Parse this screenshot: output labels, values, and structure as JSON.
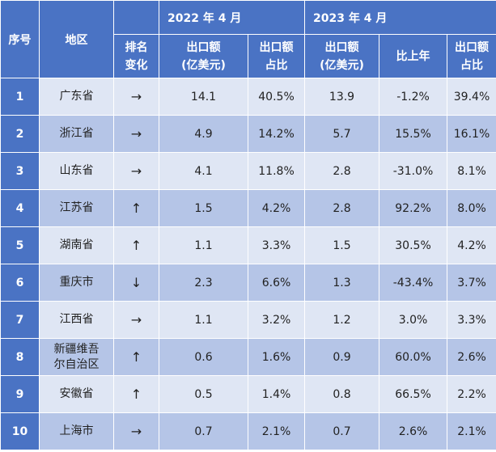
{
  "header": {
    "index": "序号",
    "region": "地区",
    "year_2022": "2022 年 4 月",
    "year_2023": "2023 年 4 月",
    "rank_change": [
      "排名",
      "变化"
    ],
    "export_value": [
      "出口额",
      "(亿美元)"
    ],
    "share": [
      "出口额",
      "占比"
    ],
    "export_value_2023": [
      "出口额",
      "(亿美元)"
    ],
    "yoy": "比上年",
    "share_2023": [
      "出口额",
      "占比"
    ]
  },
  "rows": [
    {
      "idx": "1",
      "region": "广东省",
      "rank": "→",
      "v2022": "14.1",
      "s2022": "40.5%",
      "v2023": "13.9",
      "yoy": "-1.2%",
      "s2023": "39.4%"
    },
    {
      "idx": "2",
      "region": "浙江省",
      "rank": "→",
      "v2022": "4.9",
      "s2022": "14.2%",
      "v2023": "5.7",
      "yoy": "15.5%",
      "s2023": "16.1%"
    },
    {
      "idx": "3",
      "region": "山东省",
      "rank": "→",
      "v2022": "4.1",
      "s2022": "11.8%",
      "v2023": "2.8",
      "yoy": "-31.0%",
      "s2023": "8.1%"
    },
    {
      "idx": "4",
      "region": "江苏省",
      "rank": "↑",
      "v2022": "1.5",
      "s2022": "4.2%",
      "v2023": "2.8",
      "yoy": "92.2%",
      "s2023": "8.0%"
    },
    {
      "idx": "5",
      "region": "湖南省",
      "rank": "↑",
      "v2022": "1.1",
      "s2022": "3.3%",
      "v2023": "1.5",
      "yoy": "30.5%",
      "s2023": "4.2%"
    },
    {
      "idx": "6",
      "region": "重庆市",
      "rank": "↓",
      "v2022": "2.3",
      "s2022": "6.6%",
      "v2023": "1.3",
      "yoy": "-43.4%",
      "s2023": "3.7%"
    },
    {
      "idx": "7",
      "region": "江西省",
      "rank": "→",
      "v2022": "1.1",
      "s2022": "3.2%",
      "v2023": "1.2",
      "yoy": "3.0%",
      "s2023": "3.3%"
    },
    {
      "idx": "8",
      "region": "新疆维吾尔自治区",
      "rank": "↑",
      "v2022": "0.6",
      "s2022": "1.6%",
      "v2023": "0.9",
      "yoy": "60.0%",
      "s2023": "2.6%"
    },
    {
      "idx": "9",
      "region": "安徽省",
      "rank": "↑",
      "v2022": "0.5",
      "s2022": "1.4%",
      "v2023": "0.8",
      "yoy": "66.5%",
      "s2023": "2.2%"
    },
    {
      "idx": "10",
      "region": "上海市",
      "rank": "→",
      "v2022": "0.7",
      "s2022": "2.1%",
      "v2023": "0.7",
      "yoy": "2.6%",
      "s2023": "2.1%"
    }
  ]
}
